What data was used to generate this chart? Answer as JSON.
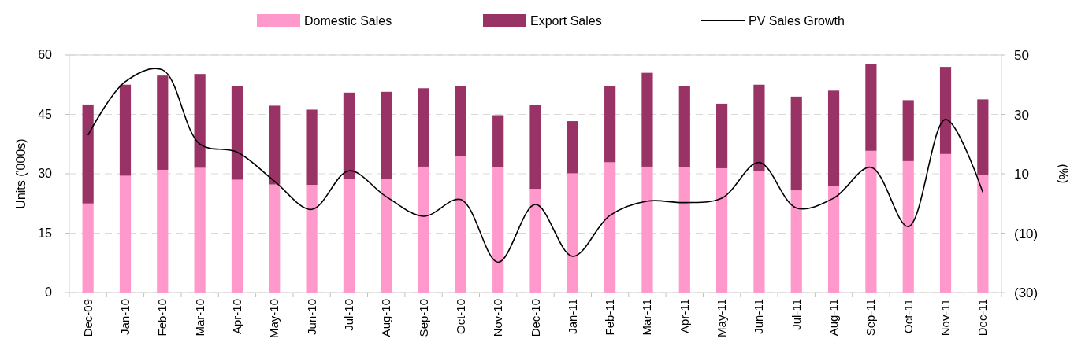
{
  "chart_data": {
    "type": "bar",
    "stacked": true,
    "categories": [
      "Dec-09",
      "Jan-10",
      "Feb-10",
      "Mar-10",
      "Apr-10",
      "May-10",
      "Jun-10",
      "Jul-10",
      "Aug-10",
      "Sep-10",
      "Oct-10",
      "Nov-10",
      "Dec-10",
      "Jan-11",
      "Feb-11",
      "Mar-11",
      "Apr-11",
      "May-11",
      "Jun-11",
      "Jul-11",
      "Aug-11",
      "Sep-11",
      "Oct-11",
      "Nov-11",
      "Dec-11"
    ],
    "series": [
      {
        "name": "Domestic Sales",
        "color": "#ff99cc",
        "values": [
          22.5,
          29.5,
          31,
          31.5,
          28.5,
          27.3,
          27.2,
          28.8,
          28.6,
          31.8,
          34.5,
          31.6,
          26.2,
          30.1,
          32.9,
          31.8,
          31.6,
          31.4,
          30.7,
          25.8,
          27,
          35.8,
          33.2,
          35,
          29.6
        ]
      },
      {
        "name": "Export Sales",
        "color": "#993366",
        "values": [
          25,
          23,
          23.8,
          23.7,
          23.7,
          19.9,
          19,
          21.7,
          22.1,
          19.8,
          17.7,
          13.2,
          21.2,
          13.2,
          19.3,
          23.7,
          20.6,
          16.3,
          21.8,
          23.7,
          24,
          22,
          15.4,
          22,
          19.2
        ]
      },
      {
        "name": "PV Sales Growth",
        "type": "line",
        "axis": "y2",
        "color": "#000000",
        "values": [
          23,
          41,
          45,
          20,
          17.3,
          7.5,
          -2,
          11,
          2.3,
          -4.3,
          1.3,
          -19.8,
          -0.3,
          -17.8,
          -4,
          0.8,
          0.3,
          1.8,
          13.8,
          -1.5,
          1.8,
          12.2,
          -7.8,
          28.3,
          3.8
        ]
      }
    ],
    "ylabel": "Units ('000s)",
    "y2label": "(%)",
    "ylim": [
      0,
      60
    ],
    "yticks": [
      0,
      15,
      30,
      45,
      60
    ],
    "y2lim": [
      -30,
      50
    ],
    "y2ticks": [
      {
        "value": -30,
        "label": "(30)"
      },
      {
        "value": -10,
        "label": "(10)"
      },
      10,
      30,
      50
    ],
    "grid": "y",
    "legend": "top",
    "marker": "none",
    "line_style": "solid"
  }
}
